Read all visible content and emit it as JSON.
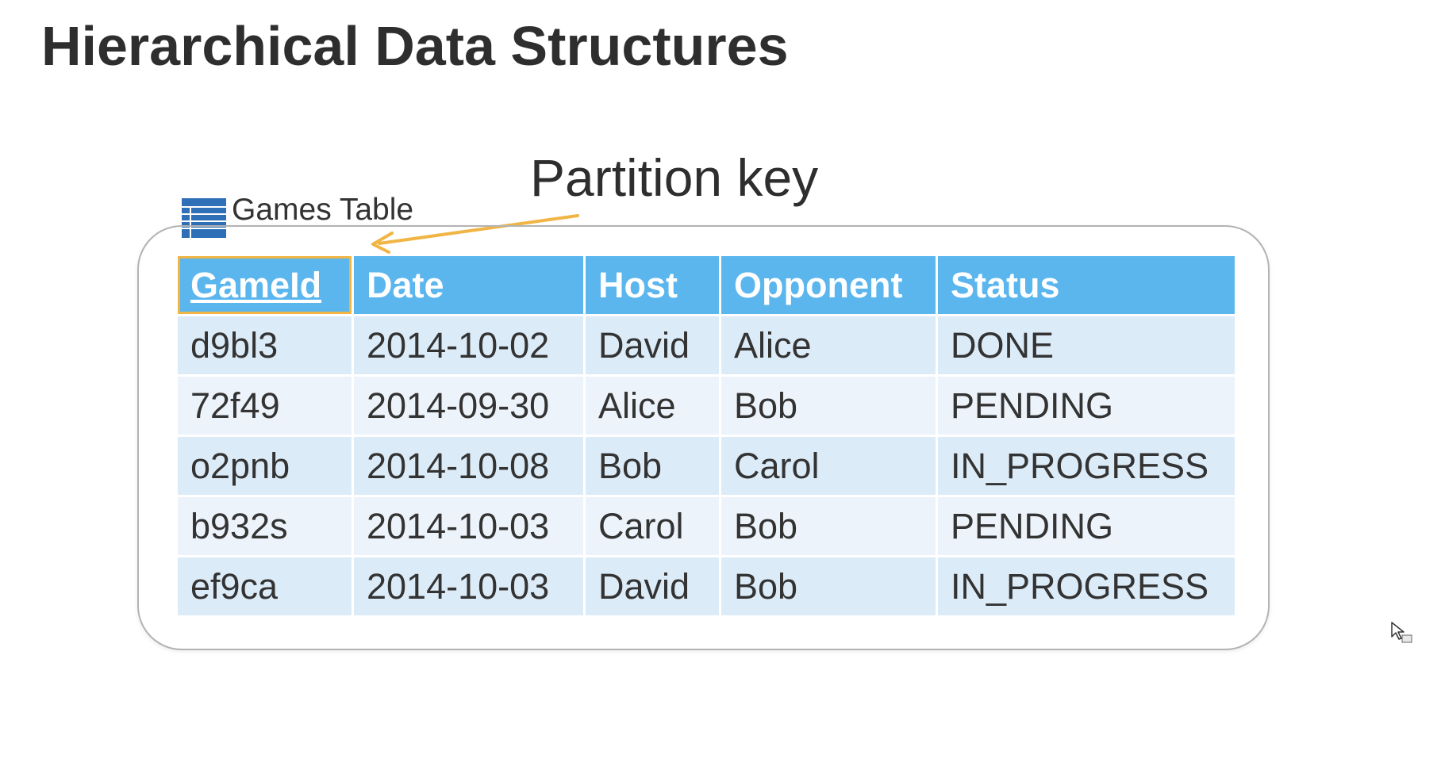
{
  "slide": {
    "title": "Hierarchical Data Structures"
  },
  "annotation": {
    "label": "Partition key",
    "arrow_color": "#f0b545"
  },
  "table": {
    "caption": "Games Table",
    "icon": "table-icon",
    "header_color": "#5bb6ee",
    "key_highlight_color": "#f0b545",
    "columns": [
      "GameId",
      "Date",
      "Host",
      "Opponent",
      "Status"
    ],
    "rows": [
      [
        "d9bl3",
        "2014-10-02",
        "David",
        "Alice",
        "DONE"
      ],
      [
        "72f49",
        "2014-09-30",
        "Alice",
        "Bob",
        "PENDING"
      ],
      [
        "o2pnb",
        "2014-10-08",
        "Bob",
        "Carol",
        "IN_PROGRESS"
      ],
      [
        "b932s",
        "2014-10-03",
        "Carol",
        "Bob",
        "PENDING"
      ],
      [
        "ef9ca",
        "2014-10-03",
        "David",
        "Bob",
        "IN_PROGRESS"
      ]
    ]
  },
  "cursor": {
    "icon": "pointer-cursor-icon"
  }
}
